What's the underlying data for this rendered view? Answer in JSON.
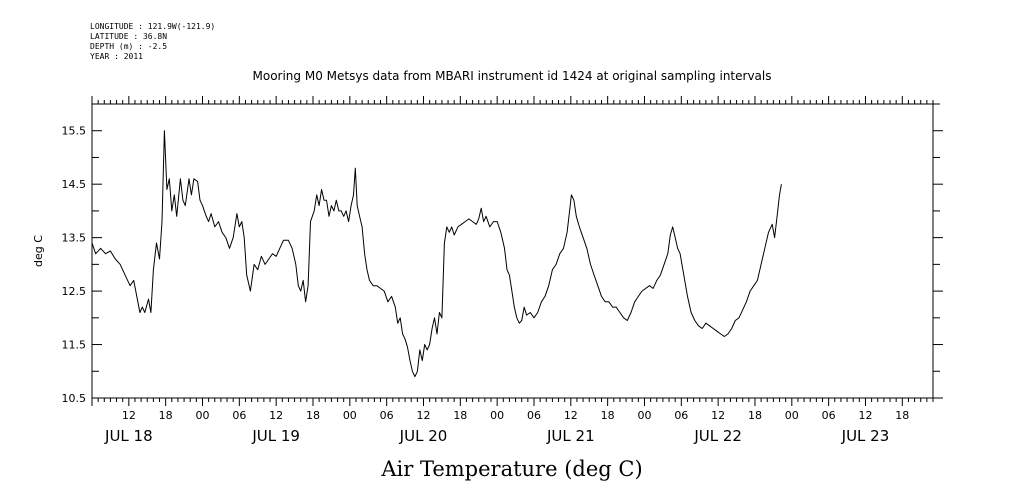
{
  "header": {
    "lines": [
      "LONGITUDE : 121.9W(-121.9)",
      "LATITUDE : 36.8N",
      "DEPTH (m) : -2.5",
      "YEAR : 2011"
    ]
  },
  "chart_data": {
    "type": "line",
    "title": "Mooring M0 Metsys data from MBARI instrument id 1424 at original sampling intervals",
    "xlabel": "Air Temperature (deg C)",
    "ylabel": "deg C",
    "ylim": [
      10.5,
      16.0
    ],
    "xlim": [
      6,
      143
    ],
    "y_ticks": [
      "10.5",
      "11.5",
      "12.5",
      "13.5",
      "14.5",
      "15.5"
    ],
    "x_hour_ticks": [
      {
        "hour": 12,
        "label": "12"
      },
      {
        "hour": 18,
        "label": "18"
      },
      {
        "hour": 24,
        "label": "00"
      },
      {
        "hour": 30,
        "label": "06"
      },
      {
        "hour": 36,
        "label": "12"
      },
      {
        "hour": 42,
        "label": "18"
      },
      {
        "hour": 48,
        "label": "00"
      },
      {
        "hour": 54,
        "label": "06"
      },
      {
        "hour": 60,
        "label": "12"
      },
      {
        "hour": 66,
        "label": "18"
      },
      {
        "hour": 72,
        "label": "00"
      },
      {
        "hour": 78,
        "label": "06"
      },
      {
        "hour": 84,
        "label": "12"
      },
      {
        "hour": 90,
        "label": "18"
      },
      {
        "hour": 96,
        "label": "00"
      },
      {
        "hour": 102,
        "label": "06"
      },
      {
        "hour": 108,
        "label": "12"
      },
      {
        "hour": 114,
        "label": "18"
      },
      {
        "hour": 120,
        "label": "00"
      },
      {
        "hour": 126,
        "label": "06"
      },
      {
        "hour": 132,
        "label": "12"
      },
      {
        "hour": 138,
        "label": "18"
      }
    ],
    "x_day_labels": [
      {
        "hour": 12,
        "label": "JUL 18"
      },
      {
        "hour": 36,
        "label": "JUL 19"
      },
      {
        "hour": 60,
        "label": "JUL 20"
      },
      {
        "hour": 84,
        "label": "JUL 21"
      },
      {
        "hour": 108,
        "label": "JUL 22"
      },
      {
        "hour": 132,
        "label": "JUL 23"
      }
    ],
    "series": [
      {
        "color": "#000000",
        "points": [
          [
            6.0,
            13.4
          ],
          [
            6.6,
            13.2
          ],
          [
            7.4,
            13.3
          ],
          [
            8.2,
            13.2
          ],
          [
            9.0,
            13.25
          ],
          [
            9.8,
            13.1
          ],
          [
            10.6,
            13.0
          ],
          [
            11.4,
            12.8
          ],
          [
            12.2,
            12.6
          ],
          [
            12.8,
            12.7
          ],
          [
            13.3,
            12.4
          ],
          [
            13.8,
            12.1
          ],
          [
            14.2,
            12.2
          ],
          [
            14.6,
            12.1
          ],
          [
            15.2,
            12.35
          ],
          [
            15.6,
            12.1
          ],
          [
            16.0,
            12.9
          ],
          [
            16.5,
            13.4
          ],
          [
            17.0,
            13.1
          ],
          [
            17.4,
            13.8
          ],
          [
            17.8,
            15.5
          ],
          [
            18.2,
            14.4
          ],
          [
            18.6,
            14.6
          ],
          [
            19.0,
            14.0
          ],
          [
            19.4,
            14.3
          ],
          [
            19.8,
            13.9
          ],
          [
            20.4,
            14.6
          ],
          [
            20.8,
            14.2
          ],
          [
            21.2,
            14.1
          ],
          [
            21.8,
            14.6
          ],
          [
            22.2,
            14.3
          ],
          [
            22.6,
            14.6
          ],
          [
            23.2,
            14.55
          ],
          [
            23.6,
            14.2
          ],
          [
            24.0,
            14.1
          ],
          [
            24.6,
            13.9
          ],
          [
            25.0,
            13.8
          ],
          [
            25.4,
            13.95
          ],
          [
            26.0,
            13.7
          ],
          [
            26.6,
            13.8
          ],
          [
            27.2,
            13.6
          ],
          [
            27.8,
            13.5
          ],
          [
            28.4,
            13.3
          ],
          [
            29.0,
            13.5
          ],
          [
            29.6,
            13.95
          ],
          [
            30.0,
            13.7
          ],
          [
            30.4,
            13.8
          ],
          [
            30.8,
            13.5
          ],
          [
            31.2,
            12.8
          ],
          [
            31.8,
            12.5
          ],
          [
            32.4,
            13.0
          ],
          [
            33.0,
            12.9
          ],
          [
            33.6,
            13.15
          ],
          [
            34.2,
            13.0
          ],
          [
            34.8,
            13.1
          ],
          [
            35.4,
            13.2
          ],
          [
            36.0,
            13.15
          ],
          [
            36.6,
            13.3
          ],
          [
            37.2,
            13.45
          ],
          [
            38.0,
            13.45
          ],
          [
            38.6,
            13.3
          ],
          [
            39.2,
            13.0
          ],
          [
            39.6,
            12.6
          ],
          [
            40.0,
            12.5
          ],
          [
            40.4,
            12.7
          ],
          [
            40.8,
            12.3
          ],
          [
            41.2,
            12.6
          ],
          [
            41.6,
            13.8
          ],
          [
            42.2,
            14.0
          ],
          [
            42.6,
            14.3
          ],
          [
            43.0,
            14.1
          ],
          [
            43.4,
            14.4
          ],
          [
            43.8,
            14.2
          ],
          [
            44.2,
            14.2
          ],
          [
            44.6,
            13.9
          ],
          [
            45.0,
            14.1
          ],
          [
            45.4,
            14.0
          ],
          [
            45.8,
            14.2
          ],
          [
            46.2,
            14.0
          ],
          [
            46.6,
            14.0
          ],
          [
            47.0,
            13.9
          ],
          [
            47.4,
            14.0
          ],
          [
            47.8,
            13.8
          ],
          [
            48.2,
            14.1
          ],
          [
            48.6,
            14.3
          ],
          [
            48.9,
            14.8
          ],
          [
            49.2,
            14.1
          ],
          [
            49.6,
            13.9
          ],
          [
            50.0,
            13.7
          ],
          [
            50.4,
            13.2
          ],
          [
            50.8,
            12.9
          ],
          [
            51.2,
            12.7
          ],
          [
            51.8,
            12.6
          ],
          [
            52.4,
            12.6
          ],
          [
            53.0,
            12.55
          ],
          [
            53.6,
            12.5
          ],
          [
            54.2,
            12.3
          ],
          [
            54.8,
            12.4
          ],
          [
            55.4,
            12.2
          ],
          [
            55.8,
            11.9
          ],
          [
            56.2,
            12.0
          ],
          [
            56.6,
            11.7
          ],
          [
            57.0,
            11.6
          ],
          [
            57.4,
            11.45
          ],
          [
            57.8,
            11.2
          ],
          [
            58.2,
            11.0
          ],
          [
            58.6,
            10.9
          ],
          [
            59.0,
            11.0
          ],
          [
            59.4,
            11.4
          ],
          [
            59.8,
            11.2
          ],
          [
            60.2,
            11.5
          ],
          [
            60.6,
            11.4
          ],
          [
            61.0,
            11.5
          ],
          [
            61.4,
            11.8
          ],
          [
            61.8,
            12.0
          ],
          [
            62.2,
            11.7
          ],
          [
            62.6,
            12.1
          ],
          [
            63.0,
            12.0
          ],
          [
            63.4,
            13.4
          ],
          [
            63.8,
            13.7
          ],
          [
            64.2,
            13.6
          ],
          [
            64.6,
            13.7
          ],
          [
            65.0,
            13.55
          ],
          [
            65.6,
            13.7
          ],
          [
            66.2,
            13.75
          ],
          [
            66.8,
            13.8
          ],
          [
            67.4,
            13.85
          ],
          [
            68.0,
            13.8
          ],
          [
            68.6,
            13.75
          ],
          [
            69.0,
            13.85
          ],
          [
            69.4,
            14.05
          ],
          [
            69.8,
            13.8
          ],
          [
            70.2,
            13.9
          ],
          [
            70.8,
            13.7
          ],
          [
            71.4,
            13.8
          ],
          [
            72.0,
            13.8
          ],
          [
            72.6,
            13.6
          ],
          [
            73.2,
            13.3
          ],
          [
            73.6,
            12.9
          ],
          [
            74.0,
            12.8
          ],
          [
            74.4,
            12.5
          ],
          [
            74.8,
            12.2
          ],
          [
            75.2,
            12.0
          ],
          [
            75.6,
            11.9
          ],
          [
            76.0,
            11.95
          ],
          [
            76.4,
            12.2
          ],
          [
            76.8,
            12.05
          ],
          [
            77.4,
            12.1
          ],
          [
            78.0,
            12.0
          ],
          [
            78.6,
            12.1
          ],
          [
            79.2,
            12.3
          ],
          [
            79.8,
            12.4
          ],
          [
            80.4,
            12.6
          ],
          [
            81.0,
            12.9
          ],
          [
            81.6,
            13.0
          ],
          [
            82.2,
            13.2
          ],
          [
            82.8,
            13.3
          ],
          [
            83.4,
            13.6
          ],
          [
            83.8,
            14.0
          ],
          [
            84.1,
            14.3
          ],
          [
            84.5,
            14.2
          ],
          [
            84.9,
            13.9
          ],
          [
            85.4,
            13.7
          ],
          [
            86.0,
            13.5
          ],
          [
            86.6,
            13.3
          ],
          [
            87.2,
            13.0
          ],
          [
            87.8,
            12.8
          ],
          [
            88.4,
            12.6
          ],
          [
            89.0,
            12.4
          ],
          [
            89.6,
            12.3
          ],
          [
            90.2,
            12.3
          ],
          [
            90.8,
            12.2
          ],
          [
            91.4,
            12.2
          ],
          [
            92.0,
            12.1
          ],
          [
            92.6,
            12.0
          ],
          [
            93.2,
            11.95
          ],
          [
            93.8,
            12.1
          ],
          [
            94.4,
            12.3
          ],
          [
            95.0,
            12.4
          ],
          [
            95.6,
            12.5
          ],
          [
            96.2,
            12.55
          ],
          [
            96.8,
            12.6
          ],
          [
            97.4,
            12.55
          ],
          [
            98.0,
            12.7
          ],
          [
            98.6,
            12.8
          ],
          [
            99.2,
            13.0
          ],
          [
            99.8,
            13.2
          ],
          [
            100.2,
            13.55
          ],
          [
            100.6,
            13.7
          ],
          [
            101.0,
            13.5
          ],
          [
            101.4,
            13.3
          ],
          [
            101.8,
            13.2
          ],
          [
            102.4,
            12.8
          ],
          [
            103.0,
            12.4
          ],
          [
            103.6,
            12.1
          ],
          [
            104.2,
            11.95
          ],
          [
            104.8,
            11.85
          ],
          [
            105.4,
            11.8
          ],
          [
            106.0,
            11.9
          ],
          [
            106.6,
            11.85
          ],
          [
            107.2,
            11.8
          ],
          [
            107.8,
            11.75
          ],
          [
            108.4,
            11.7
          ],
          [
            109.0,
            11.65
          ],
          [
            109.6,
            11.7
          ],
          [
            110.2,
            11.8
          ],
          [
            110.8,
            11.95
          ],
          [
            111.4,
            12.0
          ],
          [
            112.0,
            12.15
          ],
          [
            112.6,
            12.3
          ],
          [
            113.2,
            12.5
          ],
          [
            113.8,
            12.6
          ],
          [
            114.4,
            12.7
          ],
          [
            115.0,
            13.0
          ],
          [
            115.6,
            13.3
          ],
          [
            116.2,
            13.6
          ],
          [
            116.8,
            13.75
          ],
          [
            117.2,
            13.5
          ],
          [
            117.6,
            13.9
          ],
          [
            118.0,
            14.3
          ],
          [
            118.3,
            14.5
          ]
        ]
      }
    ]
  }
}
